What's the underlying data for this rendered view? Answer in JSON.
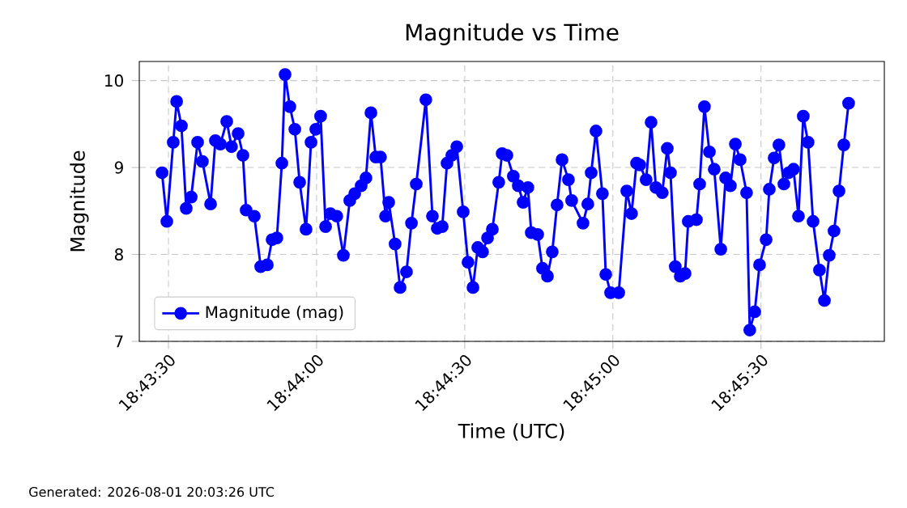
{
  "chart_data": {
    "type": "line",
    "title": "Magnitude vs Time",
    "xlabel": "Time (UTC)",
    "ylabel": "Magnitude",
    "annotations": [
      "Generated: 2026-08-01 20:03:26 UTC"
    ],
    "x": [
      18.72464,
      18.72491,
      18.72527,
      18.72546,
      18.72573,
      18.726,
      18.72628,
      18.72664,
      18.72691,
      18.72737,
      18.72764,
      18.72792,
      18.72828,
      18.72855,
      18.72892,
      18.72919,
      18.72937,
      18.72983,
      18.73019,
      18.73056,
      18.73083,
      18.7311,
      18.73138,
      18.73156,
      18.73183,
      18.73211,
      18.73238,
      18.73274,
      18.73302,
      18.73329,
      18.73356,
      18.73384,
      18.73411,
      18.73447,
      18.73484,
      18.7352,
      18.73548,
      18.73584,
      18.73611,
      18.73639,
      18.73666,
      18.73693,
      18.73721,
      18.73739,
      18.73775,
      18.73803,
      18.73839,
      18.73867,
      18.73894,
      18.73948,
      18.73985,
      18.74012,
      18.7404,
      18.74067,
      18.74094,
      18.74122,
      18.74158,
      18.74185,
      18.74213,
      18.7424,
      18.74267,
      18.74295,
      18.74322,
      18.74358,
      18.74377,
      18.74404,
      18.7444,
      18.74468,
      18.74495,
      18.74522,
      18.74541,
      18.74577,
      18.74604,
      18.74632,
      18.74659,
      18.74686,
      18.74714,
      18.7475,
      18.74768,
      18.74832,
      18.74859,
      18.74878,
      18.74905,
      18.74941,
      18.7496,
      18.74987,
      18.75033,
      18.75078,
      18.75105,
      18.75133,
      18.75151,
      18.75187,
      18.75215,
      18.75242,
      18.75278,
      18.75306,
      18.75324,
      18.75351,
      18.75379,
      18.75406,
      18.75424,
      18.7547,
      18.75488,
      18.75515,
      18.75543,
      18.7557,
      18.75607,
      18.75634,
      18.75661,
      18.75689,
      18.75716,
      18.75752,
      18.7577,
      18.75798,
      18.75825,
      18.75862,
      18.7588,
      18.75907,
      18.75934,
      18.75962,
      18.75989,
      18.76016,
      18.76044,
      18.76071,
      18.76098,
      18.76126,
      18.76162,
      18.7619,
      18.76217,
      18.76244,
      18.76272,
      18.76299,
      18.76326
    ],
    "series": [
      {
        "name": "Magnitude (mag)",
        "color": "#0000ff",
        "values": [
          8.94,
          8.38,
          9.29,
          9.76,
          9.48,
          8.53,
          8.66,
          9.29,
          9.07,
          8.58,
          9.31,
          9.27,
          9.53,
          9.24,
          9.39,
          9.14,
          8.51,
          8.44,
          7.86,
          7.88,
          8.17,
          8.19,
          9.05,
          10.07,
          9.7,
          9.44,
          8.83,
          8.29,
          9.29,
          9.44,
          9.59,
          8.32,
          8.47,
          8.44,
          7.99,
          8.62,
          8.7,
          8.79,
          8.88,
          9.63,
          9.12,
          9.12,
          8.44,
          8.6,
          8.12,
          7.62,
          7.8,
          8.36,
          8.81,
          9.78,
          8.44,
          8.3,
          8.32,
          9.05,
          9.14,
          9.24,
          8.49,
          7.91,
          7.62,
          8.08,
          8.03,
          8.19,
          8.29,
          8.83,
          9.16,
          9.14,
          8.9,
          8.79,
          8.6,
          8.77,
          8.25,
          8.23,
          7.84,
          7.75,
          8.03,
          8.57,
          9.09,
          8.86,
          8.62,
          8.36,
          8.58,
          8.94,
          9.42,
          8.7,
          7.77,
          7.56,
          7.56,
          8.73,
          8.47,
          9.05,
          9.03,
          8.86,
          9.52,
          8.77,
          8.71,
          9.22,
          8.94,
          7.86,
          7.75,
          7.78,
          8.38,
          8.4,
          8.81,
          9.7,
          9.18,
          8.98,
          8.06,
          8.88,
          8.79,
          9.27,
          9.09,
          8.71,
          7.13,
          7.34,
          7.88,
          8.17,
          8.75,
          9.11,
          9.26,
          8.81,
          8.94,
          8.98,
          8.44,
          9.59,
          9.29,
          8.38,
          7.82,
          7.47,
          7.99,
          8.27,
          8.73,
          9.26,
          9.74
        ]
      }
    ],
    "xlim": [
      18.72336,
      18.76527
    ],
    "ylim": [
      7,
      10.22
    ],
    "xticks": [
      {
        "value": 18.725,
        "label": "18:43:30"
      },
      {
        "value": 18.733333,
        "label": "18:44:00"
      },
      {
        "value": 18.741667,
        "label": "18:44:30"
      },
      {
        "value": 18.75,
        "label": "18:45:00"
      },
      {
        "value": 18.758333,
        "label": "18:45:30"
      }
    ],
    "yticks": [
      7,
      8,
      9,
      10
    ],
    "grid": true,
    "legend": "bottom left",
    "marker": "circle",
    "line_style": "solid"
  }
}
